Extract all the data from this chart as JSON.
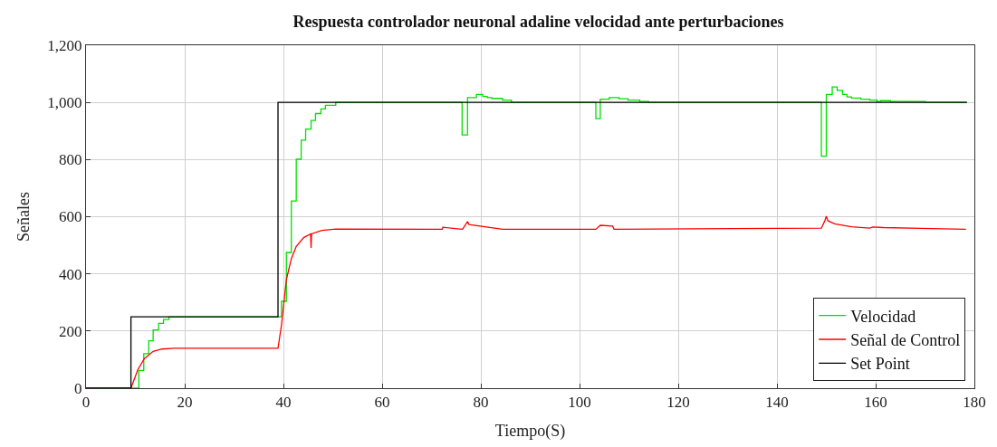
{
  "chart_data": {
    "type": "line",
    "title": "Respuesta controlador neuronal adaline velocidad ante perturbaciones",
    "xlabel": "Tiempo(S)",
    "ylabel": "Señales",
    "xlim": [
      0,
      180
    ],
    "xticks": [
      0,
      20,
      40,
      60,
      80,
      100,
      120,
      140,
      160,
      180
    ],
    "ylim": [
      0,
      1200
    ],
    "yticks": [
      0,
      200,
      400,
      600,
      800,
      {
        "value": 1000,
        "label": "1,000"
      },
      {
        "value": 1200,
        "label": "1,200"
      }
    ],
    "grid": true,
    "legend": "bottom right",
    "marker": "none",
    "line_style": "solid",
    "series": [
      {
        "name": "Velocidad",
        "type": "step",
        "color": "#00e000",
        "x": [
          0,
          10.7,
          11.7,
          12.7,
          13.6,
          14.7,
          15.7,
          16.8,
          39.6,
          40.6,
          41.6,
          42.6,
          43.6,
          44.5,
          45.6,
          46.5,
          47.6,
          48.5,
          50.6,
          76.2,
          77.3,
          79.1,
          80.4,
          81.3,
          82.2,
          84.4,
          86.2,
          103.3,
          104.2,
          106,
          108,
          109.8,
          112.2,
          114,
          149,
          150,
          151.2,
          152.2,
          153.3,
          154.2,
          155.1,
          157,
          158.8,
          160.3,
          161,
          163,
          170,
          178.5
        ],
        "values": [
          0,
          62,
          121,
          166,
          204,
          227,
          240,
          250,
          304,
          475,
          655,
          801,
          868,
          907,
          937,
          961,
          977,
          990,
          1000,
          886,
          1017,
          1028,
          1021,
          1017,
          1014,
          1008,
          1000,
          943,
          1011,
          1017,
          1013,
          1008,
          1003,
          1000,
          812,
          1028,
          1054,
          1042,
          1028,
          1019,
          1015,
          1011,
          1008,
          1003,
          1006,
          1003,
          1000,
          1000
        ]
      },
      {
        "name": "Señal de Control",
        "color": "#ff0000",
        "x": [
          0,
          9.1,
          10.5,
          11.8,
          13.6,
          15.4,
          17.9,
          38.9,
          39.6,
          40.6,
          41.6,
          42.6,
          44.1,
          45.5,
          45.6,
          45.7,
          47.8,
          50.6,
          72.2,
          72.3,
          76.3,
          77.3,
          77.6,
          84.4,
          103.3,
          104.2,
          106.7,
          107,
          149,
          149.7,
          150,
          150.3,
          151.7,
          155.1,
          158.8,
          159.4,
          161.6,
          178.3
        ],
        "values": [
          0,
          0,
          65,
          103,
          129,
          137,
          140,
          140,
          220,
          380,
          453,
          496,
          527,
          540,
          491,
          540,
          552,
          557,
          556,
          563,
          556,
          583,
          573,
          556,
          556,
          570,
          567,
          556,
          560,
          586,
          602,
          586,
          575,
          565,
          560,
          564,
          562,
          556
        ]
      },
      {
        "name": "Set Point",
        "type": "step",
        "color": "#000000",
        "x": [
          0,
          9.1,
          38.9,
          178.5
        ],
        "values": [
          0,
          250,
          1000,
          1000
        ]
      }
    ]
  }
}
